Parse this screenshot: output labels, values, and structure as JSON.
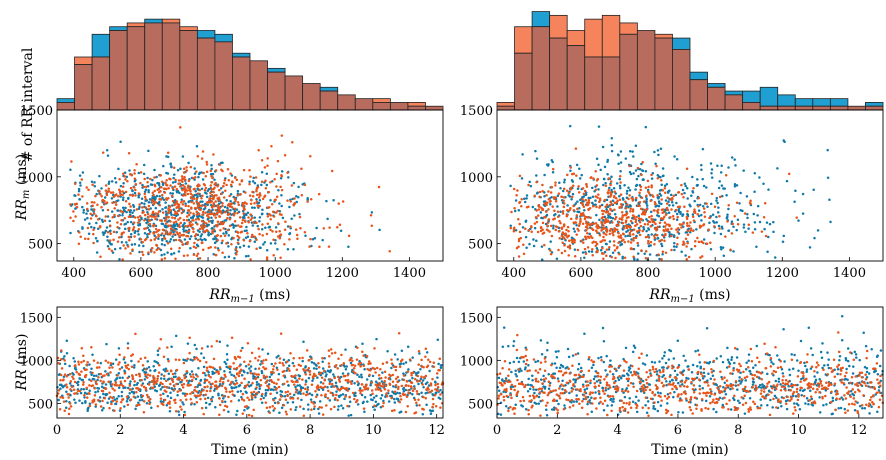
{
  "figure": {
    "ylabel_hist": "# of RR interval",
    "ylabel_scatter_main": "RR",
    "ylabel_scatter_sub": "m",
    "ylabel_scatter_unit": " (ms)",
    "xlabel_scatter_main": "RR",
    "xlabel_scatter_sub": "m−1",
    "xlabel_scatter_unit": " (ms)",
    "ylabel_time": "RR",
    "ylabel_time_unit": " (ms)",
    "xlabel_time": "Time (min)"
  },
  "colors": {
    "blue": "#1f9fd2",
    "orange": "#f5845c",
    "overlap": "#b86c5e",
    "blue_dot": "#0f7aa8",
    "orange_dot": "#e8541a"
  },
  "chart_data": [
    {
      "type": "bar",
      "panel": "left-histogram",
      "title": "",
      "ylabel": "# of RR interval",
      "bin_start": 350,
      "bin_width": 50,
      "series": [
        {
          "name": "blue",
          "values": [
            3,
            12,
            20,
            22,
            22,
            24,
            23,
            21,
            21,
            20,
            15,
            13,
            11,
            9,
            7,
            6,
            4,
            3,
            2,
            2,
            1,
            1
          ]
        },
        {
          "name": "orange",
          "values": [
            2,
            14,
            14,
            21,
            23,
            23,
            24,
            22,
            19,
            18,
            14,
            13,
            10,
            9,
            7,
            5,
            4,
            3,
            3,
            2,
            2,
            1
          ]
        }
      ]
    },
    {
      "type": "scatter",
      "panel": "left-return-map",
      "xlabel": "RR_{m-1} (ms)",
      "ylabel": "RR_m (ms)",
      "xlim": [
        350,
        1500
      ],
      "ylim": [
        370,
        1500
      ],
      "xticks": [
        400,
        600,
        800,
        1000,
        1200,
        1400
      ],
      "yticks": [
        500,
        1000,
        1500
      ],
      "series": [
        {
          "name": "blue",
          "n_points": 850,
          "mean_x": 720,
          "sd_x": 180,
          "mean_y": 720,
          "sd_y": 180
        },
        {
          "name": "orange",
          "n_points": 850,
          "mean_x": 740,
          "sd_x": 190,
          "mean_y": 740,
          "sd_y": 190
        }
      ]
    },
    {
      "type": "scatter",
      "panel": "left-time-series",
      "xlabel": "Time (min)",
      "ylabel": "RR (ms)",
      "xlim": [
        0,
        12.2
      ],
      "ylim": [
        330,
        1620
      ],
      "xticks": [
        0,
        2,
        4,
        6,
        8,
        10,
        12
      ],
      "yticks": [
        500,
        1000,
        1500
      ],
      "series": [
        {
          "name": "blue",
          "n_points": 850,
          "mean_y": 720,
          "sd_y": 190
        },
        {
          "name": "orange",
          "n_points": 850,
          "mean_y": 740,
          "sd_y": 200
        }
      ]
    },
    {
      "type": "bar",
      "panel": "right-histogram",
      "title": "",
      "ylabel": "",
      "bin_start": 350,
      "bin_width": 50,
      "series": [
        {
          "name": "blue",
          "values": [
            1,
            15,
            26,
            19,
            17,
            14,
            14,
            20,
            21,
            19,
            19,
            10,
            7,
            5,
            5,
            6,
            4,
            3,
            3,
            3,
            1,
            2
          ]
        },
        {
          "name": "orange",
          "values": [
            2,
            22,
            22,
            25,
            21,
            24,
            25,
            23,
            21,
            20,
            16,
            8,
            6,
            4,
            2,
            1,
            1,
            1,
            1,
            1,
            1,
            1
          ]
        }
      ]
    },
    {
      "type": "scatter",
      "panel": "right-return-map",
      "xlabel": "RR_{m-1} (ms)",
      "ylabel": "",
      "xlim": [
        350,
        1500
      ],
      "ylim": [
        370,
        1500
      ],
      "xticks": [
        400,
        600,
        800,
        1000,
        1200,
        1400
      ],
      "yticks": [
        500,
        1000,
        1500
      ],
      "series": [
        {
          "name": "blue",
          "n_points": 750,
          "mean_x": 740,
          "sd_x": 220,
          "mean_y": 740,
          "sd_y": 220
        },
        {
          "name": "orange",
          "n_points": 750,
          "mean_x": 680,
          "sd_x": 170,
          "mean_y": 680,
          "sd_y": 170
        }
      ]
    },
    {
      "type": "scatter",
      "panel": "right-time-series",
      "xlabel": "Time (min)",
      "ylabel": "",
      "xlim": [
        0,
        12.8
      ],
      "ylim": [
        330,
        1620
      ],
      "xticks": [
        0,
        2,
        4,
        6,
        8,
        10,
        12
      ],
      "yticks": [
        500,
        1000,
        1500
      ],
      "series": [
        {
          "name": "blue",
          "n_points": 750,
          "mean_y": 740,
          "sd_y": 230
        },
        {
          "name": "orange",
          "n_points": 750,
          "mean_y": 690,
          "sd_y": 180
        }
      ]
    }
  ]
}
